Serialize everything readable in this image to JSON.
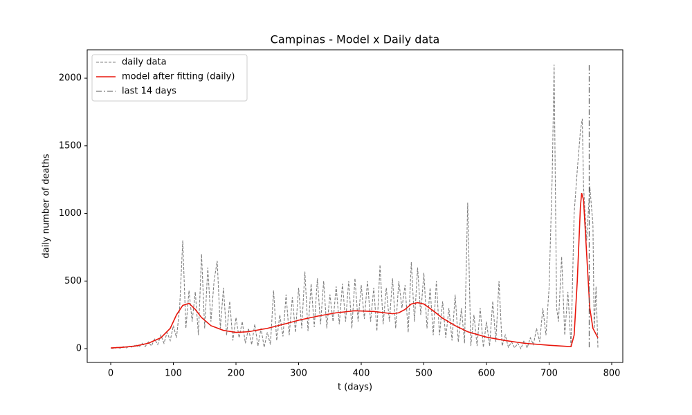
{
  "chart_data": {
    "type": "line",
    "title": "Campinas - Model x Daily data",
    "x_label": "t (days)",
    "y_label": "daily number of deaths",
    "xlim": [
      -37.6,
      817.7
    ],
    "ylim": [
      -102,
      2210
    ],
    "xticks": [
      0,
      100,
      200,
      300,
      400,
      500,
      600,
      700,
      800
    ],
    "yticks": [
      0,
      500,
      1000,
      1500,
      2000
    ],
    "legend": "upper left",
    "series": [
      {
        "name": "daily data",
        "color": "#808080",
        "style": "dashed",
        "x": [
          0,
          5,
          10,
          15,
          20,
          25,
          30,
          35,
          40,
          45,
          50,
          55,
          60,
          65,
          70,
          75,
          80,
          85,
          90,
          95,
          100,
          105,
          110,
          115,
          120,
          125,
          130,
          135,
          140,
          145,
          150,
          155,
          160,
          165,
          170,
          175,
          180,
          185,
          190,
          195,
          200,
          205,
          210,
          215,
          220,
          225,
          230,
          235,
          240,
          245,
          250,
          255,
          260,
          265,
          270,
          275,
          280,
          285,
          290,
          295,
          300,
          305,
          310,
          315,
          320,
          325,
          330,
          335,
          340,
          345,
          350,
          355,
          360,
          365,
          370,
          375,
          380,
          385,
          390,
          395,
          400,
          405,
          410,
          415,
          420,
          425,
          430,
          435,
          440,
          445,
          450,
          455,
          460,
          465,
          470,
          475,
          480,
          485,
          490,
          495,
          500,
          505,
          510,
          515,
          520,
          525,
          530,
          535,
          540,
          545,
          550,
          555,
          560,
          565,
          570,
          575,
          580,
          585,
          590,
          595,
          600,
          605,
          610,
          615,
          620,
          625,
          630,
          635,
          640,
          645,
          650,
          655,
          660,
          665,
          670,
          675,
          680,
          685,
          690,
          695,
          700,
          705,
          708,
          712,
          715,
          720,
          725,
          730,
          735,
          740,
          745,
          750,
          753,
          755,
          760,
          765,
          770,
          772,
          775,
          778
        ],
        "values": [
          5,
          0,
          10,
          3,
          15,
          5,
          20,
          8,
          30,
          10,
          40,
          15,
          50,
          20,
          70,
          30,
          100,
          40,
          120,
          60,
          170,
          80,
          300,
          800,
          150,
          430,
          200,
          420,
          100,
          700,
          150,
          600,
          200,
          500,
          650,
          150,
          450,
          100,
          350,
          60,
          230,
          80,
          200,
          40,
          150,
          30,
          180,
          20,
          150,
          10,
          120,
          30,
          430,
          60,
          250,
          90,
          400,
          100,
          380,
          120,
          450,
          150,
          570,
          130,
          480,
          160,
          520,
          180,
          500,
          150,
          400,
          200,
          460,
          180,
          480,
          200,
          500,
          150,
          520,
          200,
          470,
          220,
          500,
          200,
          450,
          130,
          620,
          180,
          450,
          200,
          520,
          150,
          500,
          300,
          470,
          120,
          640,
          200,
          600,
          250,
          560,
          150,
          450,
          100,
          500,
          100,
          350,
          80,
          300,
          60,
          400,
          50,
          300,
          40,
          1080,
          20,
          250,
          20,
          300,
          10,
          200,
          20,
          350,
          50,
          500,
          20,
          100,
          10,
          50,
          5,
          40,
          0,
          60,
          5,
          80,
          30,
          150,
          50,
          300,
          100,
          450,
          1280,
          2100,
          300,
          200,
          680,
          100,
          420,
          20,
          1000,
          1320,
          1610,
          1700,
          1200,
          800,
          1200,
          920,
          150,
          460,
          0
        ]
      },
      {
        "name": "model after fitting (daily)",
        "color": "#e8160c",
        "style": "solid",
        "x": [
          0,
          20,
          40,
          60,
          80,
          95,
          105,
          115,
          125,
          135,
          145,
          160,
          180,
          200,
          220,
          250,
          280,
          300,
          330,
          360,
          390,
          420,
          450,
          460,
          470,
          480,
          490,
          500,
          515,
          530,
          550,
          570,
          600,
          630,
          660,
          700,
          735,
          740,
          745,
          750,
          752,
          755,
          760,
          765,
          770,
          778
        ],
        "values": [
          5,
          10,
          20,
          40,
          80,
          150,
          250,
          320,
          335,
          290,
          230,
          170,
          135,
          120,
          125,
          150,
          185,
          210,
          240,
          265,
          280,
          275,
          258,
          265,
          290,
          330,
          340,
          330,
          280,
          225,
          170,
          125,
          85,
          60,
          40,
          25,
          15,
          100,
          500,
          1050,
          1150,
          1100,
          700,
          300,
          150,
          80
        ]
      },
      {
        "name": "last 14 days",
        "color": "#555555",
        "style": "dashdot",
        "x": [
          764,
          764
        ],
        "values": [
          10,
          2100
        ]
      }
    ]
  }
}
